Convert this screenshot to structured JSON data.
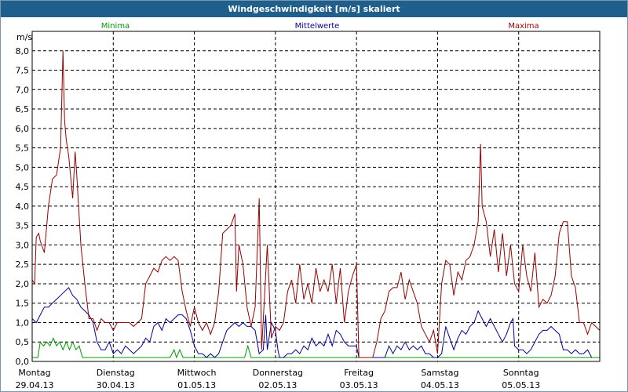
{
  "title": "Windgeschwindigkeit [m/s] skaliert",
  "chart_data": {
    "type": "line",
    "title": "Windgeschwindigkeit [m/s] skaliert",
    "ylabel": "m/s",
    "xlabel": "",
    "ylim": [
      0,
      8.5
    ],
    "xlim": [
      0,
      7
    ],
    "grid": true,
    "legend_position": "top",
    "y_ticks": [
      "0,0",
      "0,5",
      "1,0",
      "1,5",
      "2,0",
      "2,5",
      "3,0",
      "3,5",
      "4,0",
      "4,5",
      "5,0",
      "5,5",
      "6,0",
      "6,5",
      "7,0",
      "7,5",
      "8,0"
    ],
    "x_ticks": [
      {
        "day": "Montag",
        "date": "29.04.13"
      },
      {
        "day": "Dienstag",
        "date": "30.04.13"
      },
      {
        "day": "Mittwoch",
        "date": "01.05.13"
      },
      {
        "day": "Donnerstag",
        "date": "02.05.13"
      },
      {
        "day": "Freitag",
        "date": "03.05.13"
      },
      {
        "day": "Samstag",
        "date": "04.05.13"
      },
      {
        "day": "Sonntag",
        "date": "05.05.13"
      }
    ],
    "series": [
      {
        "name": "Minima",
        "color": "#009900",
        "points": [
          [
            0,
            0.1
          ],
          [
            0.07,
            0.1
          ],
          [
            0.1,
            0.5
          ],
          [
            0.14,
            0.4
          ],
          [
            0.18,
            0.5
          ],
          [
            0.22,
            0.4
          ],
          [
            0.26,
            0.6
          ],
          [
            0.3,
            0.4
          ],
          [
            0.34,
            0.5
          ],
          [
            0.38,
            0.3
          ],
          [
            0.42,
            0.5
          ],
          [
            0.46,
            0.3
          ],
          [
            0.5,
            0.5
          ],
          [
            0.54,
            0.3
          ],
          [
            0.58,
            0.4
          ],
          [
            0.62,
            0.1
          ],
          [
            1.7,
            0.1
          ],
          [
            1.75,
            0.3
          ],
          [
            1.78,
            0.1
          ],
          [
            1.82,
            0.3
          ],
          [
            1.86,
            0.1
          ],
          [
            2.62,
            0.1
          ],
          [
            2.66,
            0.4
          ],
          [
            2.7,
            0.1
          ],
          [
            7.0,
            0.1
          ]
        ]
      },
      {
        "name": "Mittelwerte",
        "color": "#000099",
        "points": [
          [
            0,
            1.1
          ],
          [
            0.05,
            1.0
          ],
          [
            0.1,
            1.2
          ],
          [
            0.15,
            1.4
          ],
          [
            0.2,
            1.4
          ],
          [
            0.25,
            1.5
          ],
          [
            0.3,
            1.6
          ],
          [
            0.35,
            1.7
          ],
          [
            0.4,
            1.8
          ],
          [
            0.45,
            1.9
          ],
          [
            0.5,
            1.7
          ],
          [
            0.55,
            1.6
          ],
          [
            0.6,
            1.4
          ],
          [
            0.65,
            1.3
          ],
          [
            0.7,
            1.2
          ],
          [
            0.75,
            1.0
          ],
          [
            0.8,
            0.5
          ],
          [
            0.85,
            0.3
          ],
          [
            0.9,
            0.3
          ],
          [
            0.95,
            0.5
          ],
          [
            1.0,
            0.2
          ],
          [
            1.05,
            0.3
          ],
          [
            1.1,
            0.2
          ],
          [
            1.15,
            0.4
          ],
          [
            1.2,
            0.3
          ],
          [
            1.25,
            0.2
          ],
          [
            1.3,
            0.3
          ],
          [
            1.35,
            0.4
          ],
          [
            1.4,
            0.6
          ],
          [
            1.45,
            0.5
          ],
          [
            1.5,
            0.9
          ],
          [
            1.55,
            1.0
          ],
          [
            1.6,
            0.8
          ],
          [
            1.65,
            1.1
          ],
          [
            1.7,
            1.0
          ],
          [
            1.75,
            1.1
          ],
          [
            1.8,
            1.2
          ],
          [
            1.85,
            1.2
          ],
          [
            1.9,
            1.1
          ],
          [
            1.95,
            0.8
          ],
          [
            2.0,
            0.4
          ],
          [
            2.05,
            0.2
          ],
          [
            2.1,
            0.2
          ],
          [
            2.15,
            0.1
          ],
          [
            2.2,
            0.2
          ],
          [
            2.25,
            0.1
          ],
          [
            2.3,
            0.2
          ],
          [
            2.35,
            0.5
          ],
          [
            2.4,
            0.8
          ],
          [
            2.45,
            0.9
          ],
          [
            2.5,
            1.0
          ],
          [
            2.55,
            0.9
          ],
          [
            2.6,
            1.0
          ],
          [
            2.65,
            0.9
          ],
          [
            2.7,
            0.9
          ],
          [
            2.75,
            0.8
          ],
          [
            2.8,
            0.2
          ],
          [
            2.85,
            0.3
          ],
          [
            2.88,
            1.2
          ],
          [
            2.9,
            0.3
          ],
          [
            2.95,
            1.0
          ],
          [
            3.0,
            0.8
          ],
          [
            3.03,
            0.3
          ],
          [
            3.05,
            0.1
          ],
          [
            3.1,
            0.1
          ],
          [
            3.15,
            0.2
          ],
          [
            3.2,
            0.2
          ],
          [
            3.25,
            0.3
          ],
          [
            3.3,
            0.2
          ],
          [
            3.35,
            0.4
          ],
          [
            3.4,
            0.3
          ],
          [
            3.45,
            0.6
          ],
          [
            3.5,
            0.4
          ],
          [
            3.55,
            0.5
          ],
          [
            3.6,
            0.4
          ],
          [
            3.65,
            0.7
          ],
          [
            3.7,
            0.4
          ],
          [
            3.75,
            0.8
          ],
          [
            3.8,
            0.7
          ],
          [
            3.85,
            0.5
          ],
          [
            3.9,
            0.4
          ],
          [
            3.95,
            0.4
          ],
          [
            4.0,
            0.4
          ],
          [
            4.03,
            0.1
          ],
          [
            4.35,
            0.1
          ],
          [
            4.4,
            0.4
          ],
          [
            4.45,
            0.2
          ],
          [
            4.5,
            0.4
          ],
          [
            4.55,
            0.3
          ],
          [
            4.6,
            0.5
          ],
          [
            4.65,
            0.3
          ],
          [
            4.7,
            0.4
          ],
          [
            4.75,
            0.3
          ],
          [
            4.8,
            0.4
          ],
          [
            4.85,
            0.2
          ],
          [
            4.9,
            0.2
          ],
          [
            4.95,
            0.1
          ],
          [
            5.0,
            0.1
          ],
          [
            5.05,
            0.2
          ],
          [
            5.1,
            0.9
          ],
          [
            5.15,
            0.6
          ],
          [
            5.2,
            0.3
          ],
          [
            5.25,
            0.6
          ],
          [
            5.3,
            0.8
          ],
          [
            5.35,
            0.7
          ],
          [
            5.4,
            0.9
          ],
          [
            5.45,
            1.0
          ],
          [
            5.5,
            1.3
          ],
          [
            5.55,
            1.1
          ],
          [
            5.6,
            0.9
          ],
          [
            5.65,
            1.1
          ],
          [
            5.7,
            0.9
          ],
          [
            5.75,
            0.7
          ],
          [
            5.8,
            0.5
          ],
          [
            5.85,
            0.7
          ],
          [
            5.9,
            1.0
          ],
          [
            5.93,
            1.1
          ],
          [
            5.95,
            0.4
          ],
          [
            6.0,
            0.3
          ],
          [
            6.05,
            0.3
          ],
          [
            6.1,
            0.2
          ],
          [
            6.15,
            0.3
          ],
          [
            6.2,
            0.5
          ],
          [
            6.25,
            0.7
          ],
          [
            6.3,
            0.8
          ],
          [
            6.35,
            0.8
          ],
          [
            6.4,
            0.9
          ],
          [
            6.45,
            0.8
          ],
          [
            6.5,
            0.7
          ],
          [
            6.55,
            0.3
          ],
          [
            6.6,
            0.3
          ],
          [
            6.65,
            0.2
          ],
          [
            6.7,
            0.3
          ],
          [
            6.75,
            0.2
          ],
          [
            6.8,
            0.2
          ],
          [
            6.85,
            0.3
          ],
          [
            6.9,
            0.1
          ]
        ]
      },
      {
        "name": "Maxima",
        "color": "#990000",
        "points": [
          [
            0,
            2.1
          ],
          [
            0.03,
            2.0
          ],
          [
            0.05,
            3.2
          ],
          [
            0.08,
            3.3
          ],
          [
            0.1,
            3.1
          ],
          [
            0.15,
            2.8
          ],
          [
            0.2,
            4.0
          ],
          [
            0.25,
            4.7
          ],
          [
            0.3,
            4.8
          ],
          [
            0.35,
            5.5
          ],
          [
            0.38,
            8.0
          ],
          [
            0.4,
            6.2
          ],
          [
            0.42,
            5.7
          ],
          [
            0.45,
            5.3
          ],
          [
            0.5,
            4.2
          ],
          [
            0.53,
            5.4
          ],
          [
            0.55,
            4.8
          ],
          [
            0.6,
            3.0
          ],
          [
            0.65,
            2.0
          ],
          [
            0.7,
            1.1
          ],
          [
            0.75,
            1.1
          ],
          [
            0.8,
            0.8
          ],
          [
            0.85,
            1.1
          ],
          [
            0.9,
            1.0
          ],
          [
            0.95,
            1.0
          ],
          [
            1.0,
            0.8
          ],
          [
            1.05,
            1.0
          ],
          [
            1.1,
            1.0
          ],
          [
            1.15,
            1.0
          ],
          [
            1.2,
            1.0
          ],
          [
            1.25,
            0.9
          ],
          [
            1.3,
            1.0
          ],
          [
            1.35,
            1.1
          ],
          [
            1.4,
            2.0
          ],
          [
            1.45,
            2.2
          ],
          [
            1.5,
            2.4
          ],
          [
            1.55,
            2.3
          ],
          [
            1.6,
            2.6
          ],
          [
            1.65,
            2.7
          ],
          [
            1.7,
            2.6
          ],
          [
            1.75,
            2.7
          ],
          [
            1.8,
            2.6
          ],
          [
            1.85,
            1.8
          ],
          [
            1.9,
            1.3
          ],
          [
            1.95,
            0.9
          ],
          [
            2.0,
            1.4
          ],
          [
            2.05,
            1.0
          ],
          [
            2.1,
            0.8
          ],
          [
            2.15,
            1.0
          ],
          [
            2.2,
            0.7
          ],
          [
            2.25,
            1.0
          ],
          [
            2.3,
            1.8
          ],
          [
            2.35,
            3.3
          ],
          [
            2.4,
            3.4
          ],
          [
            2.45,
            3.5
          ],
          [
            2.5,
            3.8
          ],
          [
            2.52,
            1.8
          ],
          [
            2.55,
            3.0
          ],
          [
            2.6,
            2.5
          ],
          [
            2.65,
            1.4
          ],
          [
            2.7,
            0.9
          ],
          [
            2.75,
            1.4
          ],
          [
            2.8,
            4.2
          ],
          [
            2.83,
            0.3
          ],
          [
            2.9,
            3.0
          ],
          [
            2.95,
            0.6
          ],
          [
            3.0,
            0.9
          ],
          [
            3.05,
            0.8
          ],
          [
            3.1,
            1.0
          ],
          [
            3.15,
            1.8
          ],
          [
            3.2,
            2.1
          ],
          [
            3.25,
            1.5
          ],
          [
            3.3,
            2.5
          ],
          [
            3.35,
            1.6
          ],
          [
            3.4,
            2.0
          ],
          [
            3.45,
            1.5
          ],
          [
            3.5,
            2.4
          ],
          [
            3.55,
            1.8
          ],
          [
            3.6,
            2.1
          ],
          [
            3.65,
            1.8
          ],
          [
            3.7,
            2.5
          ],
          [
            3.75,
            1.5
          ],
          [
            3.8,
            2.4
          ],
          [
            3.85,
            1.0
          ],
          [
            3.9,
            1.8
          ],
          [
            3.95,
            2.2
          ],
          [
            4.0,
            2.5
          ],
          [
            4.03,
            0.1
          ],
          [
            4.2,
            0.1
          ],
          [
            4.25,
            0.5
          ],
          [
            4.3,
            1.1
          ],
          [
            4.35,
            1.3
          ],
          [
            4.4,
            1.8
          ],
          [
            4.45,
            1.9
          ],
          [
            4.5,
            1.9
          ],
          [
            4.55,
            2.3
          ],
          [
            4.6,
            1.6
          ],
          [
            4.65,
            2.1
          ],
          [
            4.7,
            1.8
          ],
          [
            4.75,
            1.5
          ],
          [
            4.8,
            0.9
          ],
          [
            4.85,
            0.7
          ],
          [
            4.9,
            0.5
          ],
          [
            4.95,
            0.8
          ],
          [
            5.0,
            0.2
          ],
          [
            5.05,
            2.0
          ],
          [
            5.1,
            2.6
          ],
          [
            5.15,
            2.5
          ],
          [
            5.2,
            1.7
          ],
          [
            5.25,
            2.3
          ],
          [
            5.3,
            2.1
          ],
          [
            5.35,
            2.6
          ],
          [
            5.4,
            2.7
          ],
          [
            5.45,
            3.0
          ],
          [
            5.5,
            3.6
          ],
          [
            5.53,
            5.6
          ],
          [
            5.55,
            4.0
          ],
          [
            5.6,
            3.6
          ],
          [
            5.65,
            2.7
          ],
          [
            5.7,
            3.4
          ],
          [
            5.75,
            2.3
          ],
          [
            5.8,
            3.3
          ],
          [
            5.85,
            2.2
          ],
          [
            5.9,
            3.0
          ],
          [
            5.95,
            2.0
          ],
          [
            6.0,
            1.8
          ],
          [
            6.05,
            3.0
          ],
          [
            6.1,
            2.2
          ],
          [
            6.15,
            1.8
          ],
          [
            6.2,
            2.8
          ],
          [
            6.25,
            1.4
          ],
          [
            6.3,
            1.6
          ],
          [
            6.35,
            1.5
          ],
          [
            6.4,
            1.7
          ],
          [
            6.45,
            2.2
          ],
          [
            6.5,
            3.3
          ],
          [
            6.55,
            3.6
          ],
          [
            6.6,
            3.6
          ],
          [
            6.65,
            2.2
          ],
          [
            6.7,
            1.9
          ],
          [
            6.75,
            1.0
          ],
          [
            6.8,
            1.0
          ],
          [
            6.85,
            0.7
          ],
          [
            6.9,
            1.0
          ],
          [
            7.0,
            0.8
          ]
        ]
      }
    ]
  }
}
